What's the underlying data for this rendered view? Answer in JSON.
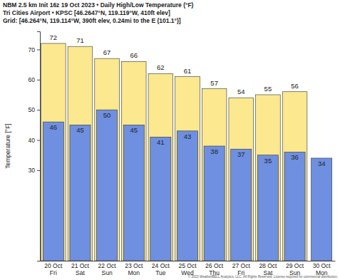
{
  "chart_data": {
    "type": "bar",
    "title": "NBM 2.5 km Init 16z 19 Oct 2023 • Daily High/Low Temperature (°F)",
    "subtitle": "Tri Cities Airport • KPSC [46.2647°N, 119.119°W, 410ft elev]",
    "annotations": [
      "Grid: [46.264°N, 119.114°W, 390ft elev, 0.24mi to the E (101.1°)]",
      "© 2023 WeatherBELL Analytics, LLC. All Rights Reserved. License required for commercial distribution."
    ],
    "y_label": "Temperature [°F]",
    "categories": [
      "20 Oct\nFri",
      "21 Oct\nSat",
      "22 Oct\nSun",
      "23 Oct\nMon",
      "24 Oct\nTue",
      "25 Oct\nWed",
      "26 Oct\nThu",
      "27 Oct\nFri",
      "28 Oct\nSat",
      "29 Oct\nSun",
      "30 Oct\nMon"
    ],
    "series": [
      {
        "color": "#fbe88f",
        "values": [
          72,
          71,
          67,
          66,
          62,
          61,
          57,
          54,
          55,
          56,
          null
        ]
      },
      {
        "color": "#6f8fe0",
        "values": [
          46,
          45,
          50,
          45,
          41,
          43,
          38,
          37,
          35,
          36,
          34
        ]
      }
    ],
    "ylim": [
      0,
      76
    ],
    "yticks": [
      30,
      40,
      50,
      60,
      70
    ],
    "grid": false,
    "data_labels": true
  }
}
